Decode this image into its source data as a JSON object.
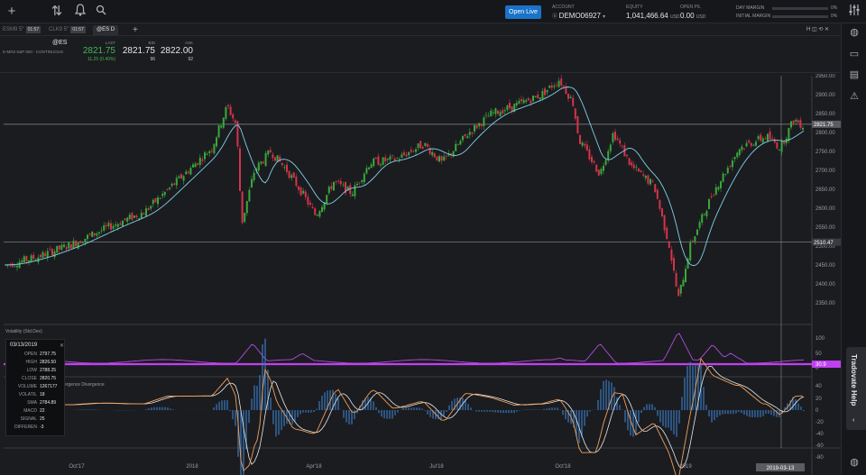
{
  "topbar": {
    "open_live": "Open Live",
    "account": {
      "label": "ACCOUNT",
      "value": "DEMO06927"
    },
    "equity": {
      "label": "EQUITY",
      "value": "1,041,466.64",
      "unit": "USD"
    },
    "open_pl": {
      "label": "OPEN P/L",
      "value": "0.00",
      "unit": "USD"
    },
    "day_margin": {
      "label": "DAY MARGIN",
      "pct": "0%"
    },
    "initial_margin": {
      "label": "INITIAL MARGIN",
      "pct": "0%"
    }
  },
  "tabs": [
    {
      "label": "ESM9 5''",
      "badge": "01:57"
    },
    {
      "label": "CLK9 5''",
      "badge": "01:57"
    },
    {
      "label": "@ES D",
      "badge": ""
    }
  ],
  "quote": {
    "symbol": "@ES",
    "description": "E-MINI S&P 500 - CONTINUOUS",
    "last_label": "LAST",
    "last": "2821.75",
    "change": "11.25 (0.40%)",
    "bid_label": "BID",
    "bid": "2821.75",
    "bid_size": "96",
    "ask_label": "ASK",
    "ask": "2822.00",
    "ask_size": "92"
  },
  "chart_toolbar": [
    "zoom-in",
    "zoom-out",
    "D",
    "bars",
    "candles",
    "settings",
    "indicators",
    "template"
  ],
  "price_axis": [
    "2950.00",
    "2900.00",
    "2850.00",
    "2800.00",
    "2750.00",
    "2700.00",
    "2650.00",
    "2600.00",
    "2550.00",
    "2500.00",
    "2450.00",
    "2400.00",
    "2350.00"
  ],
  "price_markers": {
    "last": "2821.75",
    "crosshair": "2510.47"
  },
  "time_axis": [
    "Oct'17",
    "2018",
    "Apr'18",
    "Jul'18",
    "Oct'18",
    "2019"
  ],
  "time_marker": "2019-03-13",
  "volatility": {
    "label": "Volatility (Std.Dev)",
    "axis": [
      "100",
      "50",
      "0"
    ],
    "marker": "30.9"
  },
  "macd": {
    "label": "MACD  Moving Average Convergence Divergence",
    "axis": [
      "40",
      "20",
      "0",
      "-20",
      "-40",
      "-60",
      "-80"
    ]
  },
  "infobox": {
    "date": "03/13/2019",
    "rows": [
      {
        "k": "OPEN",
        "v": "2797.75"
      },
      {
        "k": "HIGH",
        "v": "2826.50"
      },
      {
        "k": "LOW",
        "v": "2788.25"
      },
      {
        "k": "CLOSE",
        "v": "2820.75"
      },
      {
        "k": "VOLUME",
        "v": "1267177"
      },
      {
        "k": "VOLATIL",
        "v": "18"
      },
      {
        "k": "SMA",
        "v": "2784.89"
      },
      {
        "k": "MACD",
        "v": "22"
      },
      {
        "k": "SIGNAL",
        "v": "25"
      },
      {
        "k": "DIFFEREN",
        "v": "-3"
      }
    ]
  },
  "help_tab": "Tradovate Help",
  "colors": {
    "up": "#3aa83a",
    "down": "#d6334a",
    "sma": "#7fd0e6",
    "vol": "#b34de0",
    "macd": "#f0a05a",
    "signal": "#e8e8e8",
    "hist": "#3a7bbf",
    "marker": "#c040f0"
  }
}
